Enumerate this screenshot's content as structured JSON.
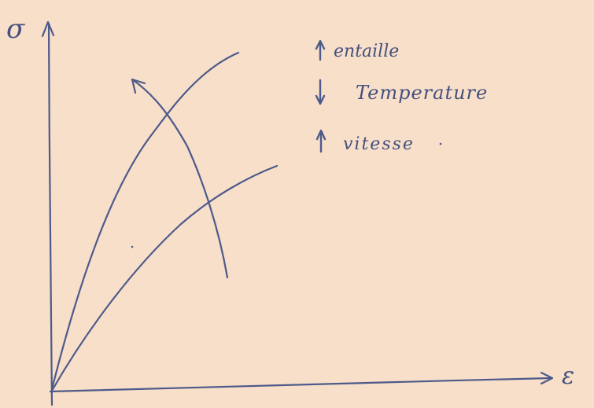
{
  "axes": {
    "y_label": "σ",
    "x_label": "ε"
  },
  "legend": [
    {
      "arrow": "up",
      "label": "entaille"
    },
    {
      "arrow": "down",
      "label": "Temperature"
    },
    {
      "arrow": "up",
      "label": "vitesse"
    }
  ],
  "colors": {
    "paper": "#f6dcc4",
    "ink": "#4d5a8a"
  }
}
